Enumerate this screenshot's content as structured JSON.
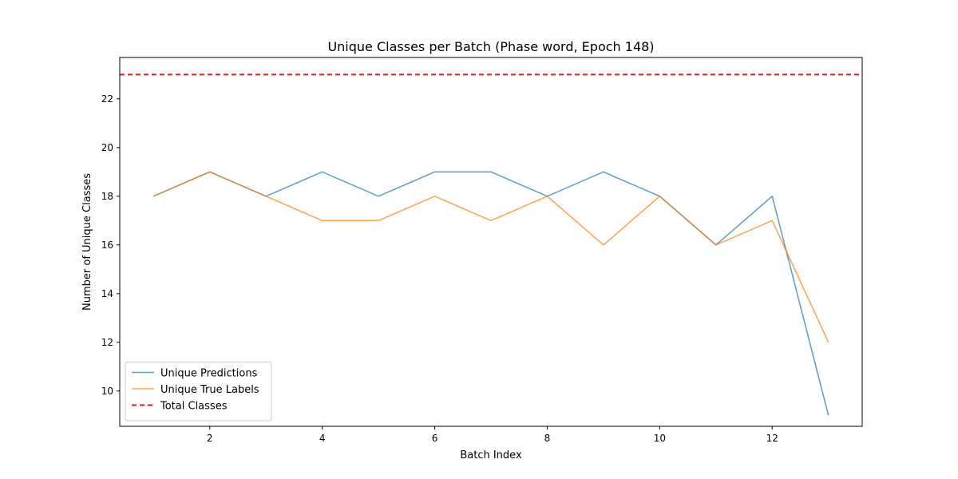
{
  "chart_data": {
    "type": "line",
    "title": "Unique Classes per Batch (Phase word, Epoch 148)",
    "xlabel": "Batch Index",
    "ylabel": "Number of Unique Classes",
    "x": [
      1,
      2,
      3,
      4,
      5,
      6,
      7,
      8,
      9,
      10,
      11,
      12,
      13
    ],
    "xlim": [
      0.4,
      13.6
    ],
    "ylim": [
      8.55,
      23.7
    ],
    "xticks": [
      2,
      4,
      6,
      8,
      10,
      12
    ],
    "yticks": [
      10,
      12,
      14,
      16,
      18,
      20,
      22
    ],
    "grid": false,
    "legend_position": "lower-left",
    "series": [
      {
        "name": "Unique Predictions",
        "color": "#1f77b4",
        "style": "solid",
        "values": [
          18,
          19,
          18,
          19,
          18,
          19,
          19,
          18,
          19,
          18,
          16,
          18,
          9
        ]
      },
      {
        "name": "Unique True Labels",
        "color": "#ff7f0e",
        "style": "solid",
        "values": [
          18,
          19,
          18,
          17,
          17,
          18,
          17,
          18,
          16,
          18,
          16,
          17,
          12
        ]
      }
    ],
    "reference_lines": [
      {
        "name": "Total Classes",
        "color": "#e31a1c",
        "style": "dashed",
        "y": 23
      }
    ]
  }
}
